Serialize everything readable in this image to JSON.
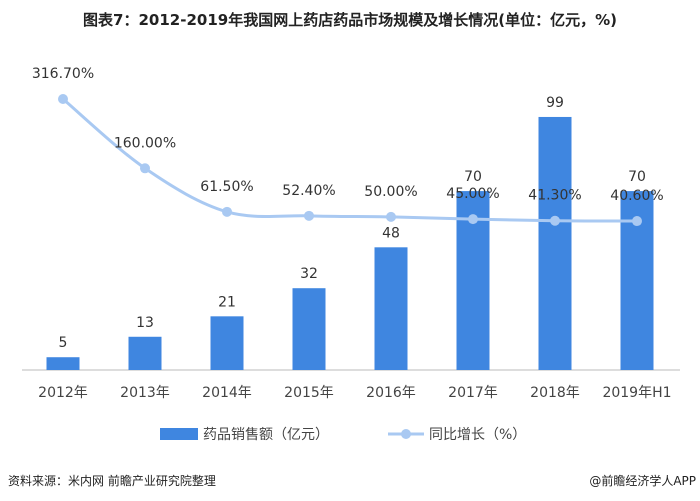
{
  "chart_data": {
    "type": "bar+line",
    "title": "图表7：2012-2019年我国网上药店药品市场规模及增长情况(单位：亿元，%)",
    "categories": [
      "2012年",
      "2013年",
      "2014年",
      "2015年",
      "2016年",
      "2017年",
      "2018年",
      "2019年H1"
    ],
    "series": [
      {
        "name": "药品销售额（亿元）",
        "type": "bar",
        "color": "#3f86e0",
        "values": [
          5,
          13,
          21,
          32,
          48,
          70,
          99,
          70
        ],
        "labels": [
          "5",
          "13",
          "21",
          "32",
          "48",
          "70",
          "99",
          "70"
        ]
      },
      {
        "name": "同比增长（%）",
        "type": "line",
        "color": "#a9c9f2",
        "values": [
          316.7,
          160.0,
          61.5,
          52.4,
          50.0,
          45.0,
          41.3,
          40.6
        ],
        "labels": [
          "316.70%",
          "160.00%",
          "61.50%",
          "52.40%",
          "50.00%",
          "45.00%",
          "41.30%",
          "40.60%"
        ]
      }
    ],
    "grid": false,
    "legend": "bottom"
  },
  "source": "资料来源：米内网 前瞻产业研究院整理",
  "credit": "@前瞻经济学人APP"
}
